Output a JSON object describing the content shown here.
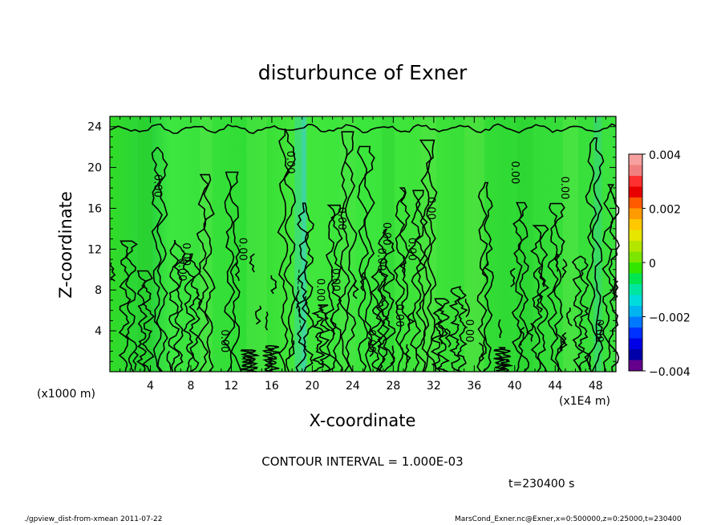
{
  "chart_data": {
    "type": "heatmap",
    "title": "disturbunce of Exner",
    "xlabel": "X-coordinate",
    "ylabel": "Z-coordinate",
    "x_unit_label": "(x1000 m)",
    "x_scale_label": "(x1E4 m)",
    "xlim": [
      0,
      50
    ],
    "ylim": [
      0,
      25
    ],
    "x_ticks": [
      "4",
      "8",
      "12",
      "16",
      "20",
      "24",
      "28",
      "32",
      "36",
      "40",
      "44",
      "48"
    ],
    "y_ticks": [
      "4",
      "8",
      "12",
      "16",
      "20",
      "24"
    ],
    "colorbar": {
      "range": [
        -0.004,
        0.004
      ],
      "tick_labels": [
        "0.004",
        "0.002",
        "0",
        "−0.002",
        "−0.004"
      ],
      "colors": [
        "#f7a0a0",
        "#f08080",
        "#ff3030",
        "#e80000",
        "#ff5a00",
        "#ff9a00",
        "#ffc800",
        "#e6e600",
        "#b4e600",
        "#7ce600",
        "#32e600",
        "#00e650",
        "#00e6a0",
        "#00dcdc",
        "#00b4f0",
        "#0078ff",
        "#0032ff",
        "#0000e6",
        "#0000aa",
        "#64008c"
      ]
    },
    "contour_labels": [
      "0.00",
      "0.00",
      "0.00",
      "0.00",
      "0.00",
      "0.00",
      "0.00",
      "0.00",
      "0.00",
      "0.00",
      "0.00",
      "0.00",
      "0.00",
      "0.00",
      "0.00",
      "0.00",
      "0.00",
      "0.00",
      "0.00"
    ],
    "contour_interval_text": "CONTOUR INTERVAL = 1.000E-03",
    "time_text": "t=230400 s"
  },
  "footer": {
    "left": "./gpview_dist-from-xmean  2011-07-22",
    "right": "MarsCond_Exner.nc@Exner,x=0:500000,z=0:25000,t=230400"
  }
}
